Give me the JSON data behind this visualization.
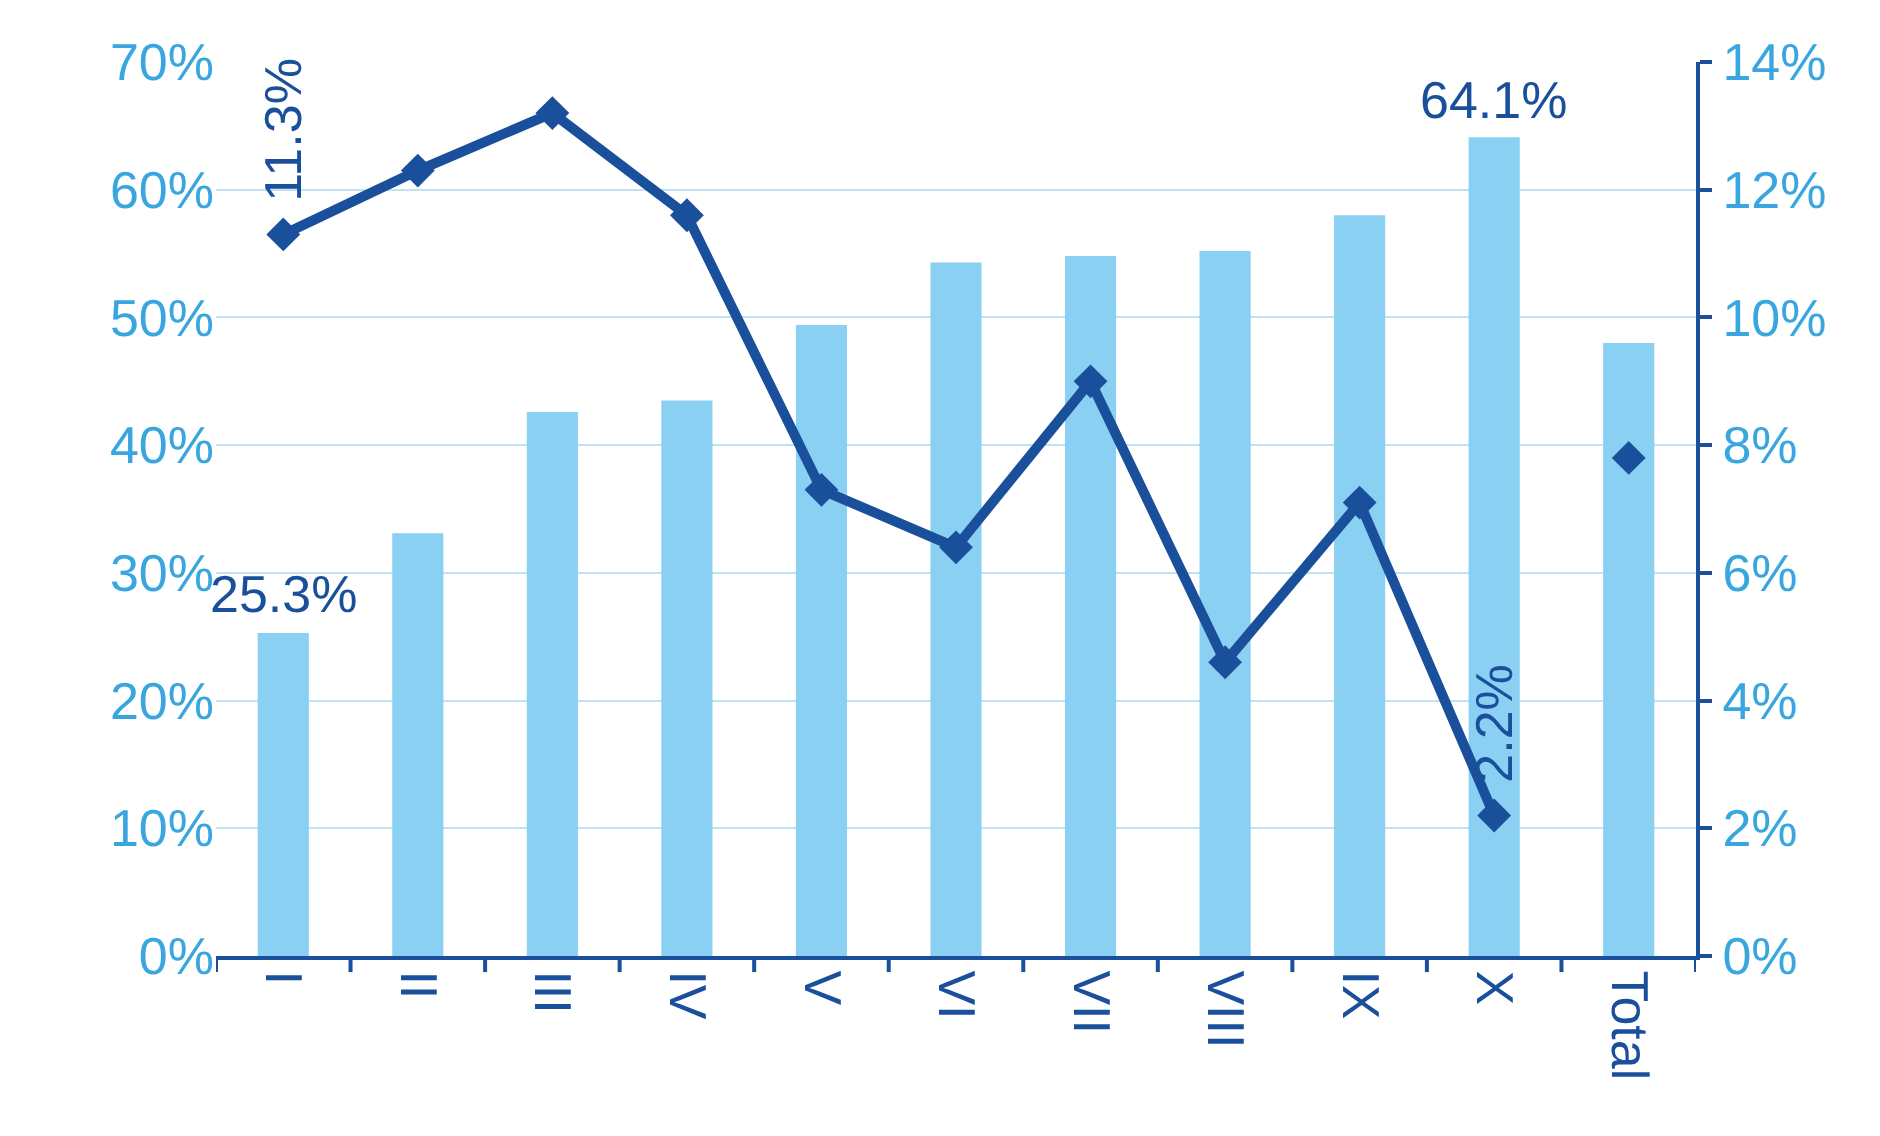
{
  "chart_data": {
    "type": "bar",
    "categories": [
      "I",
      "II",
      "III",
      "IV",
      "V",
      "VI",
      "VII",
      "VIII",
      "IX",
      "X",
      "Total"
    ],
    "series": [
      {
        "color": "#8ad0f2",
        "values": [
          25.3,
          33.1,
          42.6,
          43.5,
          49.4,
          54.3,
          54.8,
          55.2,
          58.0,
          64.1,
          48.0
        ],
        "value_labels": [
          "25.3%",
          null,
          null,
          null,
          null,
          null,
          null,
          null,
          null,
          "64.1%",
          null
        ]
      },
      {
        "type": "line",
        "axis": "y2",
        "color": "#1a4f9c",
        "marker": "diamond",
        "line_style": "solid",
        "values": [
          11.3,
          12.3,
          13.2,
          11.6,
          7.3,
          6.4,
          9.0,
          4.6,
          7.1,
          2.2,
          null
        ],
        "value_labels": [
          "11.3%",
          null,
          null,
          null,
          null,
          null,
          null,
          null,
          null,
          "2.2%",
          null
        ]
      },
      {
        "type": "scatter",
        "axis": "y2",
        "color": "#1a4f9c",
        "marker": "diamond",
        "values": [
          null,
          null,
          null,
          null,
          null,
          null,
          null,
          null,
          null,
          null,
          7.8
        ]
      }
    ],
    "ylim": [
      0,
      70
    ],
    "yticks": [
      {
        "value": 0,
        "label": "0%"
      },
      {
        "value": 10,
        "label": "10%"
      },
      {
        "value": 20,
        "label": "20%"
      },
      {
        "value": 30,
        "label": "30%"
      },
      {
        "value": 40,
        "label": "40%"
      },
      {
        "value": 50,
        "label": "50%"
      },
      {
        "value": 60,
        "label": "60%"
      },
      {
        "value": 70,
        "label": "70%"
      }
    ],
    "y2lim": [
      0,
      14
    ],
    "y2ticks": [
      {
        "value": 0,
        "label": "0%"
      },
      {
        "value": 2,
        "label": "2%"
      },
      {
        "value": 4,
        "label": "4%"
      },
      {
        "value": 6,
        "label": "6%"
      },
      {
        "value": 8,
        "label": "8%"
      },
      {
        "value": 10,
        "label": "10%"
      },
      {
        "value": 12,
        "label": "12%"
      },
      {
        "value": 14,
        "label": "14%"
      }
    ],
    "grid": "y"
  }
}
